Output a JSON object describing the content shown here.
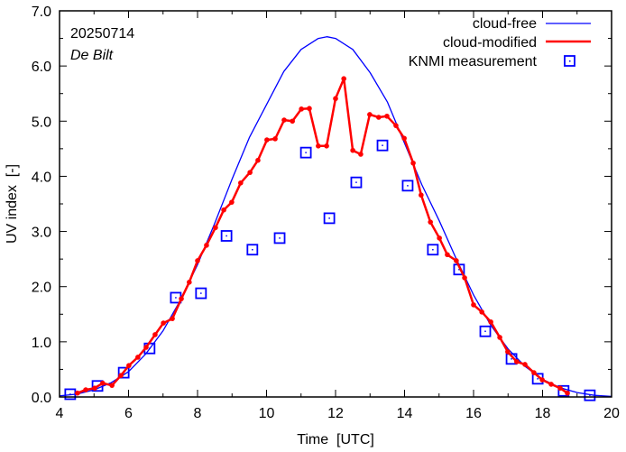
{
  "chart_data": {
    "type": "line",
    "title": "",
    "annotations": {
      "date": "20250714",
      "location": "De Bilt"
    },
    "xlabel": "Time  [UTC]",
    "ylabel": "UV index  [-]",
    "xlim": [
      4,
      20
    ],
    "ylim": [
      0,
      7
    ],
    "xticks": [
      4,
      6,
      8,
      10,
      12,
      14,
      16,
      18,
      20
    ],
    "xtick_labels": [
      "4",
      "6",
      "8",
      "10",
      "12",
      "14",
      "16",
      "18",
      "20"
    ],
    "yticks": [
      0,
      1,
      2,
      3,
      4,
      5,
      6,
      7
    ],
    "ytick_labels": [
      "0.0",
      "1.0",
      "2.0",
      "3.0",
      "4.0",
      "5.0",
      "6.0",
      "7.0"
    ],
    "x_minor_step": 1,
    "y_minor_step": 0.5,
    "grid": false,
    "legend_position": "top-right",
    "series": [
      {
        "name": "cloud-free",
        "style": "line",
        "color": "#0000ff",
        "x": [
          4.0,
          4.5,
          5.0,
          5.5,
          6.0,
          6.5,
          7.0,
          7.5,
          8.0,
          8.5,
          9.0,
          9.5,
          10.0,
          10.5,
          11.0,
          11.5,
          11.75,
          12.0,
          12.5,
          13.0,
          13.5,
          14.0,
          14.5,
          15.0,
          15.5,
          16.0,
          16.5,
          17.0,
          17.5,
          18.0,
          18.5,
          19.0,
          19.5,
          20.0
        ],
        "y": [
          0.02,
          0.05,
          0.13,
          0.26,
          0.46,
          0.78,
          1.2,
          1.75,
          2.4,
          3.15,
          3.95,
          4.7,
          5.3,
          5.9,
          6.3,
          6.5,
          6.53,
          6.5,
          6.3,
          5.88,
          5.35,
          4.6,
          3.85,
          3.2,
          2.5,
          1.85,
          1.3,
          0.87,
          0.55,
          0.32,
          0.17,
          0.08,
          0.03,
          0.01
        ]
      },
      {
        "name": "cloud-modified",
        "style": "line-points",
        "color": "#ff0000",
        "x": [
          4.52,
          4.76,
          5.02,
          5.25,
          5.52,
          5.78,
          6.01,
          6.27,
          6.51,
          6.77,
          7.01,
          7.27,
          7.53,
          7.76,
          8.0,
          8.26,
          8.52,
          8.76,
          8.99,
          9.25,
          9.52,
          9.75,
          10.01,
          10.25,
          10.51,
          10.75,
          11.01,
          11.24,
          11.5,
          11.74,
          12.0,
          12.24,
          12.5,
          12.73,
          12.99,
          13.25,
          13.49,
          13.75,
          13.99,
          14.25,
          14.48,
          14.75,
          15.01,
          15.24,
          15.5,
          15.74,
          16.0,
          16.24,
          16.5,
          16.76,
          16.99,
          17.25,
          17.49,
          17.75,
          17.99,
          18.25,
          18.51,
          18.72
        ],
        "y": [
          0.07,
          0.13,
          0.16,
          0.25,
          0.21,
          0.39,
          0.57,
          0.72,
          0.9,
          1.13,
          1.34,
          1.42,
          1.78,
          2.08,
          2.47,
          2.75,
          3.07,
          3.39,
          3.53,
          3.88,
          4.07,
          4.29,
          4.66,
          4.68,
          5.02,
          5.0,
          5.22,
          5.23,
          4.55,
          4.55,
          5.41,
          5.77,
          4.47,
          4.4,
          5.12,
          5.07,
          5.09,
          4.92,
          4.69,
          4.24,
          3.66,
          3.17,
          2.88,
          2.58,
          2.47,
          2.16,
          1.67,
          1.54,
          1.36,
          1.08,
          0.82,
          0.64,
          0.59,
          0.44,
          0.31,
          0.23,
          0.16,
          0.07
        ]
      },
      {
        "name": "KNMI measurement",
        "style": "square-markers",
        "color": "#0000ff",
        "x": [
          4.31,
          5.1,
          5.86,
          6.61,
          7.37,
          8.1,
          8.84,
          9.59,
          10.38,
          11.14,
          11.82,
          12.6,
          13.36,
          14.09,
          14.82,
          15.58,
          16.34,
          17.1,
          17.86,
          18.61,
          19.37
        ],
        "y": [
          0.05,
          0.2,
          0.44,
          0.88,
          1.8,
          1.88,
          2.92,
          2.67,
          2.88,
          4.43,
          3.24,
          3.89,
          4.56,
          3.83,
          2.67,
          2.31,
          1.19,
          0.69,
          0.33,
          0.11,
          0.03
        ]
      }
    ]
  }
}
